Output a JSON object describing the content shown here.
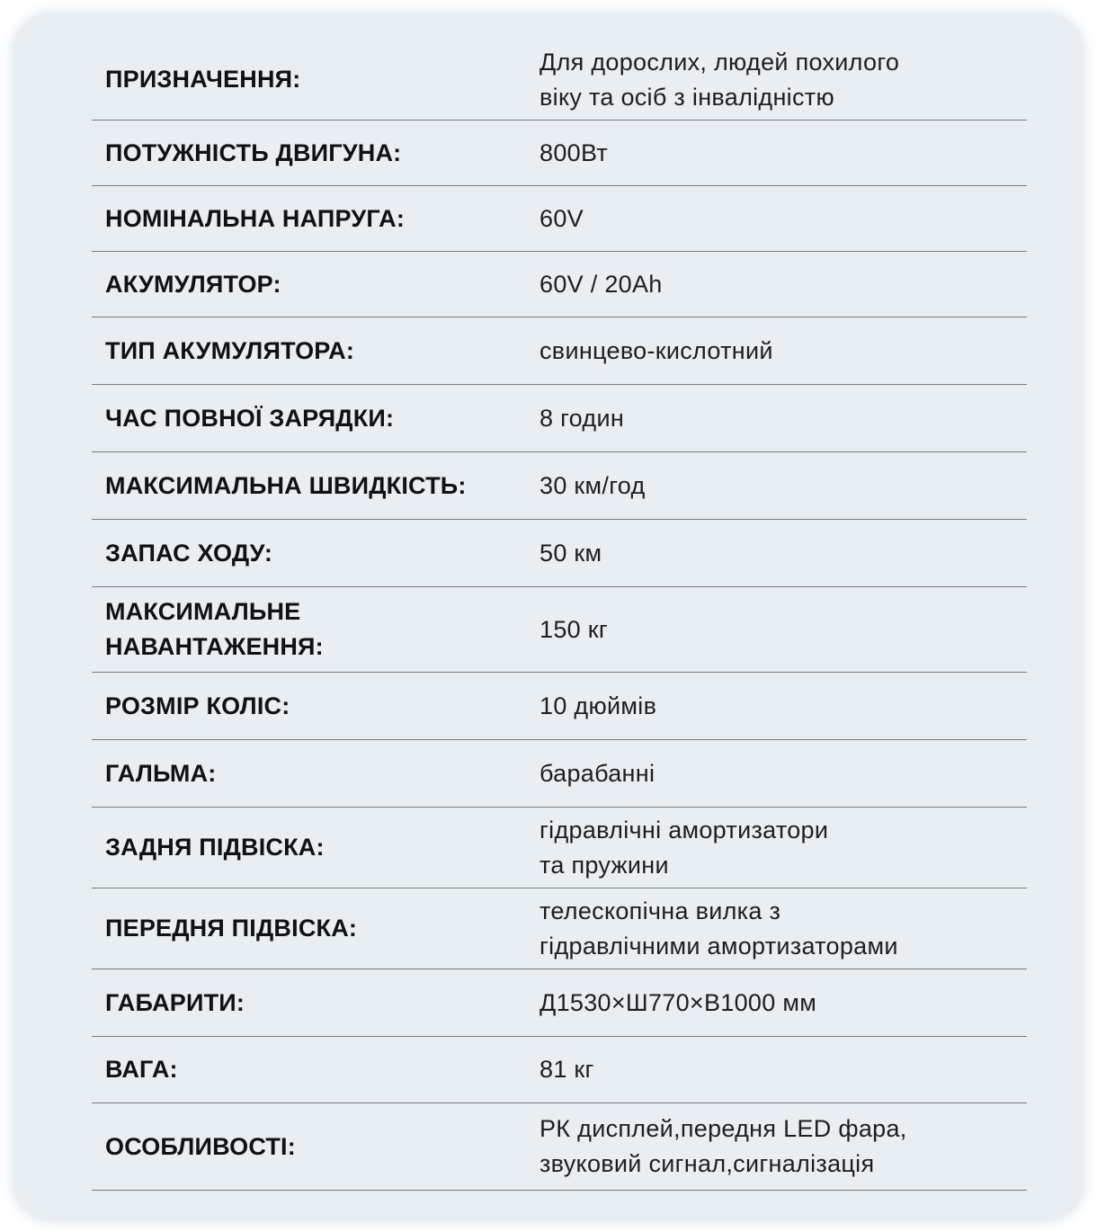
{
  "specs": [
    {
      "label": "ПРИЗНАЧЕННЯ:",
      "value": [
        "Для дорослих, людей похилого",
        "віку та осіб з інвалідністю"
      ]
    },
    {
      "label": "ПОТУЖНІСТЬ ДВИГУНА:",
      "value": [
        "800Вт"
      ]
    },
    {
      "label": "НОМІНАЛЬНА НАПРУГА:",
      "value": [
        "60V"
      ]
    },
    {
      "label": "АКУМУЛЯТОР:",
      "value": [
        "60V / 20Ah"
      ]
    },
    {
      "label": "ТИП АКУМУЛЯТОРА:",
      "value": [
        "свинцево-кислотний"
      ]
    },
    {
      "label": "ЧАС ПОВНОЇ ЗАРЯДКИ:",
      "value": [
        "8 годин"
      ]
    },
    {
      "label": "МАКСИМАЛЬНА ШВИДКІСТЬ:",
      "value": [
        "30 км/год"
      ]
    },
    {
      "label": "ЗАПАС ХОДУ:",
      "value": [
        "50 км"
      ]
    },
    {
      "label": "МАКСИМАЛЬНЕ НАВАНТАЖЕННЯ:",
      "value": [
        "150 кг"
      ]
    },
    {
      "label": "РОЗМІР КОЛІС:",
      "value": [
        "10 дюймів"
      ]
    },
    {
      "label": "ГАЛЬМА:",
      "value": [
        "барабанні"
      ]
    },
    {
      "label": "ЗАДНЯ ПІДВІСКА:",
      "value": [
        "гідравлічні амортизатори",
        "та пружини"
      ]
    },
    {
      "label": "ПЕРЕДНЯ ПІДВІСКА:",
      "value": [
        "телескопічна вилка з",
        "гідравлічними амортизаторами"
      ]
    },
    {
      "label": "ГАБАРИТИ:",
      "value": [
        "Д1530×Ш770×В1000 мм"
      ]
    },
    {
      "label": "ВАГА:",
      "value": [
        "81 кг"
      ]
    },
    {
      "label": "ОСОБЛИВОСТІ:",
      "value": [
        "РК дисплей,передня LED фара,",
        "звуковий сигнал,сигналізація"
      ]
    }
  ]
}
